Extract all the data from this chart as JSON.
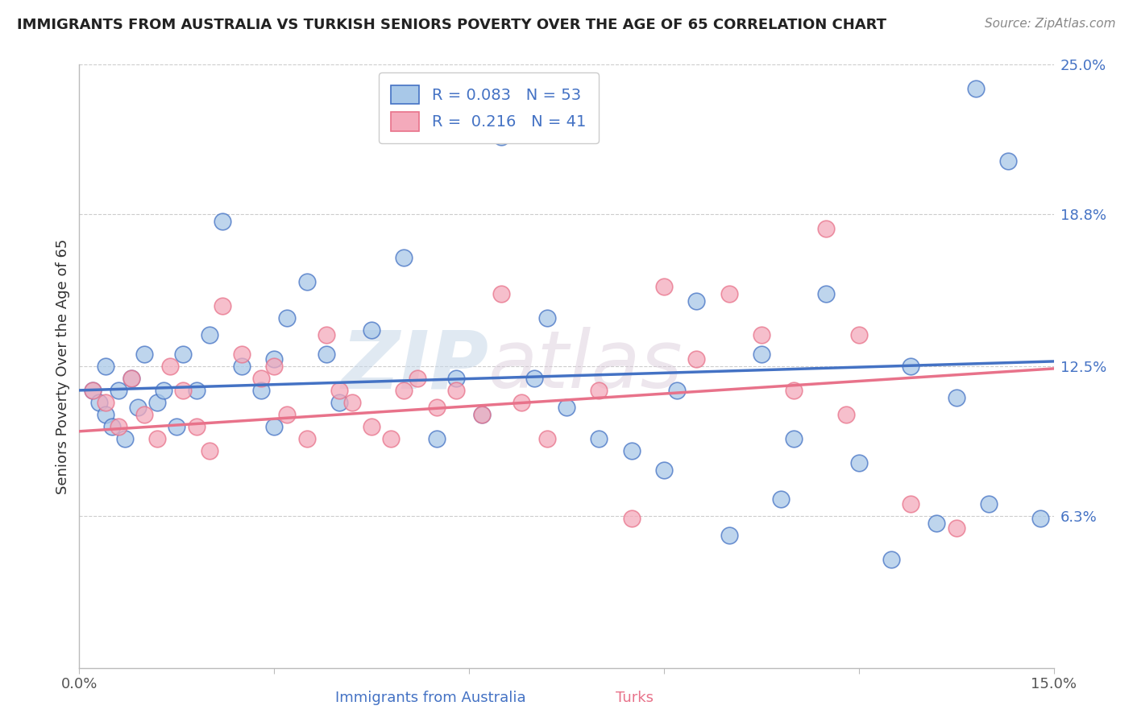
{
  "title": "IMMIGRANTS FROM AUSTRALIA VS TURKISH SENIORS POVERTY OVER THE AGE OF 65 CORRELATION CHART",
  "source": "Source: ZipAtlas.com",
  "xlabel_bottom": "Immigrants from Australia",
  "xlabel_right": "Turks",
  "ylabel": "Seniors Poverty Over the Age of 65",
  "xlim": [
    0.0,
    0.15
  ],
  "ylim": [
    0.0,
    0.25
  ],
  "yticks_right": [
    0.063,
    0.125,
    0.188,
    0.25
  ],
  "ytick_right_labels": [
    "6.3%",
    "12.5%",
    "18.8%",
    "25.0%"
  ],
  "legend_R1": "0.083",
  "legend_N1": "53",
  "legend_R2": "0.216",
  "legend_N2": "41",
  "blue_color": "#A8C8E8",
  "pink_color": "#F4AABB",
  "line_blue": "#4472C4",
  "line_pink": "#E8728A",
  "blue_scatter_x": [
    0.002,
    0.003,
    0.004,
    0.004,
    0.005,
    0.006,
    0.007,
    0.008,
    0.009,
    0.01,
    0.012,
    0.013,
    0.015,
    0.016,
    0.018,
    0.02,
    0.022,
    0.025,
    0.028,
    0.03,
    0.03,
    0.032,
    0.035,
    0.038,
    0.04,
    0.045,
    0.05,
    0.055,
    0.058,
    0.062,
    0.065,
    0.07,
    0.072,
    0.075,
    0.08,
    0.085,
    0.09,
    0.092,
    0.095,
    0.1,
    0.105,
    0.108,
    0.11,
    0.115,
    0.12,
    0.125,
    0.128,
    0.132,
    0.135,
    0.138,
    0.14,
    0.143,
    0.148
  ],
  "blue_scatter_y": [
    0.115,
    0.11,
    0.105,
    0.125,
    0.1,
    0.115,
    0.095,
    0.12,
    0.108,
    0.13,
    0.11,
    0.115,
    0.1,
    0.13,
    0.115,
    0.138,
    0.185,
    0.125,
    0.115,
    0.1,
    0.128,
    0.145,
    0.16,
    0.13,
    0.11,
    0.14,
    0.17,
    0.095,
    0.12,
    0.105,
    0.22,
    0.12,
    0.145,
    0.108,
    0.095,
    0.09,
    0.082,
    0.115,
    0.152,
    0.055,
    0.13,
    0.07,
    0.095,
    0.155,
    0.085,
    0.045,
    0.125,
    0.06,
    0.112,
    0.24,
    0.068,
    0.21,
    0.062
  ],
  "pink_scatter_x": [
    0.002,
    0.004,
    0.006,
    0.008,
    0.01,
    0.012,
    0.014,
    0.016,
    0.018,
    0.02,
    0.022,
    0.025,
    0.028,
    0.03,
    0.032,
    0.035,
    0.038,
    0.04,
    0.042,
    0.045,
    0.048,
    0.05,
    0.052,
    0.055,
    0.058,
    0.062,
    0.065,
    0.068,
    0.072,
    0.08,
    0.085,
    0.09,
    0.095,
    0.1,
    0.105,
    0.11,
    0.115,
    0.118,
    0.12,
    0.128,
    0.135
  ],
  "pink_scatter_y": [
    0.115,
    0.11,
    0.1,
    0.12,
    0.105,
    0.095,
    0.125,
    0.115,
    0.1,
    0.09,
    0.15,
    0.13,
    0.12,
    0.125,
    0.105,
    0.095,
    0.138,
    0.115,
    0.11,
    0.1,
    0.095,
    0.115,
    0.12,
    0.108,
    0.115,
    0.105,
    0.155,
    0.11,
    0.095,
    0.115,
    0.062,
    0.158,
    0.128,
    0.155,
    0.138,
    0.115,
    0.182,
    0.105,
    0.138,
    0.068,
    0.058
  ],
  "blue_line_x0": 0.0,
  "blue_line_y0": 0.115,
  "blue_line_x1": 0.15,
  "blue_line_y1": 0.127,
  "pink_line_x0": 0.0,
  "pink_line_y0": 0.098,
  "pink_line_x1": 0.15,
  "pink_line_y1": 0.124,
  "watermark_zip": "ZIP",
  "watermark_atlas": "atlas",
  "background_color": "#FFFFFF",
  "grid_color": "#CCCCCC",
  "title_color": "#222222",
  "ylabel_color": "#333333",
  "source_color": "#888888",
  "tick_color": "#4472C4"
}
